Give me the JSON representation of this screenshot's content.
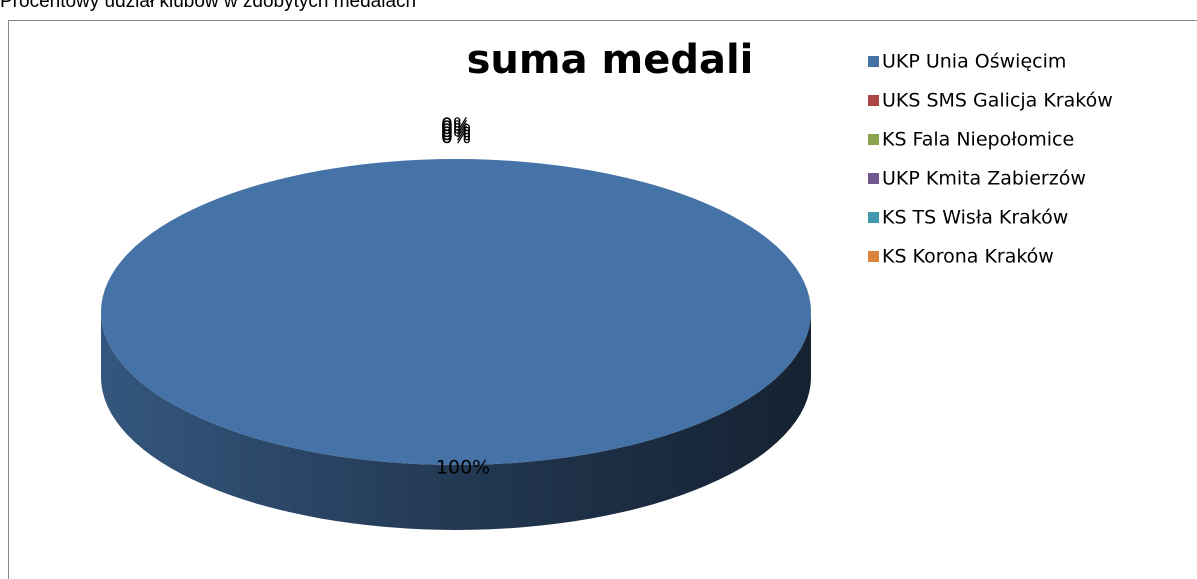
{
  "caption": "Procentowy udział klubów w zdobytych medalach",
  "chart_data": {
    "type": "pie",
    "title": "suma medali",
    "categories": [
      "UKP Unia Oświęcim",
      "UKS SMS Galicja Kraków",
      "KS Fala Niepołomice",
      "UKP Kmita Zabierzów",
      "KS TS Wisła Kraków",
      "KS Korona Kraków"
    ],
    "values": [
      100,
      0,
      0,
      0,
      0,
      0
    ],
    "value_labels": [
      "100%",
      "0%",
      "0%",
      "0%",
      "0%",
      "0%"
    ],
    "colors": [
      "#4572A7",
      "#AA4643",
      "#89A54E",
      "#71588F",
      "#4198AF",
      "#DB843D"
    ],
    "legend": "right"
  }
}
